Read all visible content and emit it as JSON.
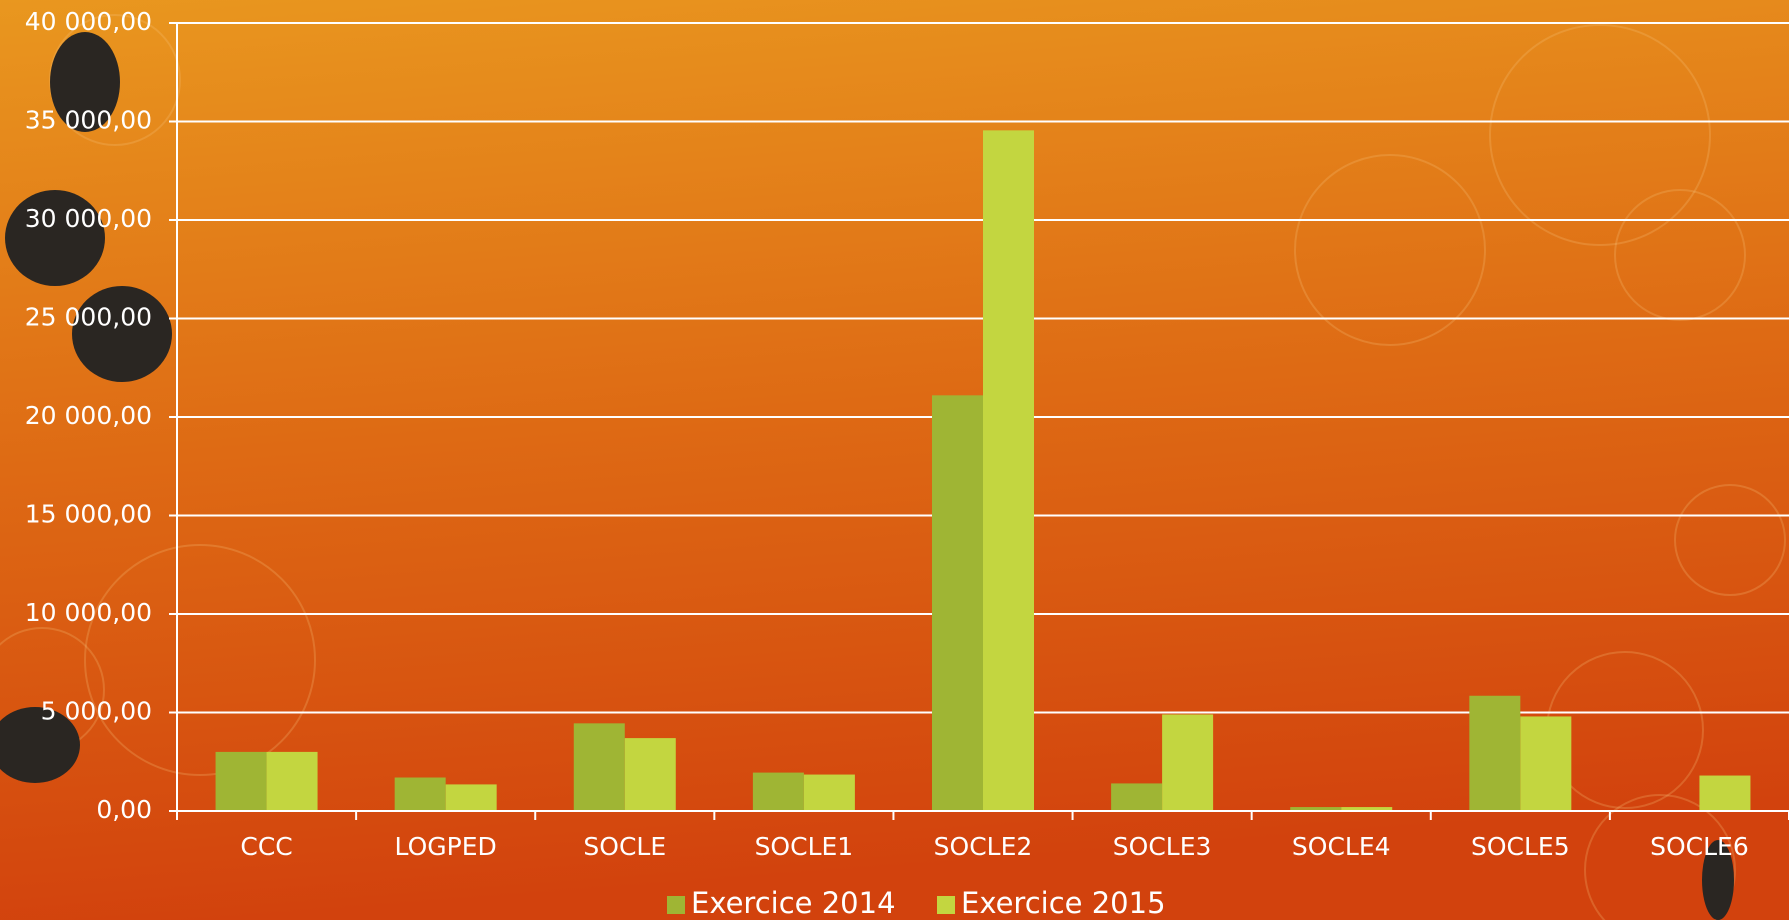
{
  "chart_data": {
    "type": "bar",
    "categories": [
      "CCC",
      "LOGPED",
      "SOCLE",
      "SOCLE1",
      "SOCLE2",
      "SOCLE3",
      "SOCLE4",
      "SOCLE5",
      "SOCLE6"
    ],
    "series": [
      {
        "name": "Exercice 2014",
        "color": "#9fb534",
        "values": [
          3000,
          1700,
          4450,
          1950,
          21100,
          1400,
          200,
          5850,
          null
        ]
      },
      {
        "name": "Exercice 2015",
        "color": "#c3d640",
        "values": [
          3000,
          1350,
          3700,
          1850,
          34550,
          4900,
          200,
          4800,
          1800
        ]
      }
    ],
    "ylim": [
      0,
      40000
    ],
    "yticks": [
      {
        "value": 0,
        "label": "0,00"
      },
      {
        "value": 5000,
        "label": "5 000,00"
      },
      {
        "value": 10000,
        "label": "10 000,00"
      },
      {
        "value": 15000,
        "label": "15 000,00"
      },
      {
        "value": 20000,
        "label": "20 000,00"
      },
      {
        "value": 25000,
        "label": "25 000,00"
      },
      {
        "value": 30000,
        "label": "30 000,00"
      },
      {
        "value": 35000,
        "label": "35 000,00"
      },
      {
        "value": 40000,
        "label": "40 000,00"
      }
    ],
    "grid": true,
    "legend": "bottom"
  }
}
